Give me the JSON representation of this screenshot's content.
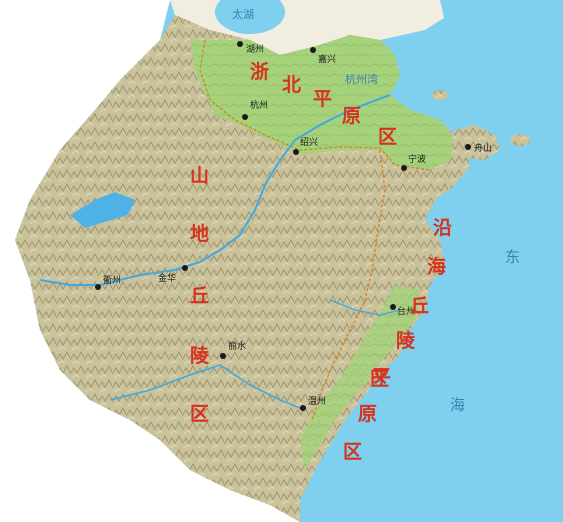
{
  "map": {
    "colors": {
      "sea": "#7fd0ee",
      "land_hills": "#c8c19a",
      "plain": "#9fcf74",
      "outside_land": "#f1ede0",
      "river": "#42a8e0",
      "region_label": "#d6321e",
      "boundary": "#d9822b"
    },
    "water_labels": {
      "taihu": "太湖",
      "hangzhou_bay": "杭州湾",
      "east_sea_1": "东",
      "east_sea_2": "海"
    },
    "cities": {
      "huzhou": "湖州",
      "jiaxing": "嘉兴",
      "hangzhou": "杭州",
      "shaoxing": "绍兴",
      "ningbo": "宁波",
      "zhoushan": "舟山",
      "quzhou": "衢州",
      "jinhua": "金华",
      "taizhou": "台州",
      "lishui": "丽水",
      "wenzhou": "温州"
    },
    "regions": {
      "north_plain": [
        "浙",
        "北",
        "平",
        "原",
        "区"
      ],
      "mountain_hills": [
        "山",
        "地",
        "丘",
        "陵",
        "区"
      ],
      "coastal_hills": [
        "沿",
        "海",
        "丘",
        "陵",
        "区"
      ],
      "coastal_plain": [
        "平",
        "原",
        "区"
      ]
    }
  }
}
